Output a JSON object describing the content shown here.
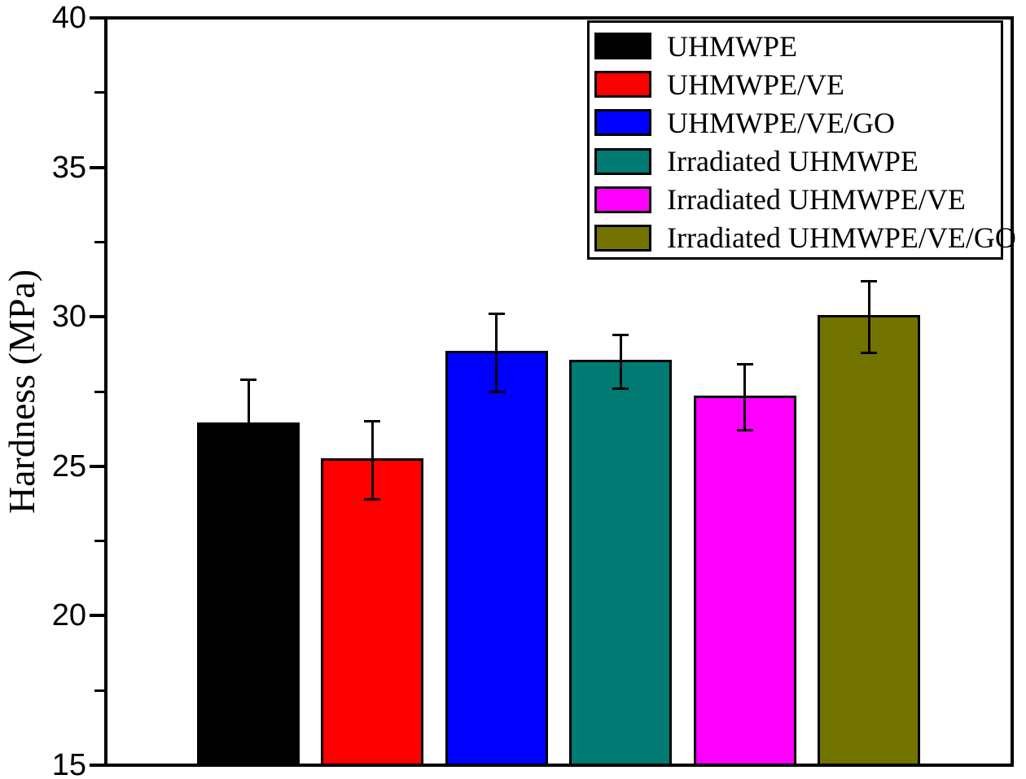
{
  "chart_data": {
    "type": "bar",
    "title": "",
    "xlabel": "",
    "ylabel": "Hardness (MPa)",
    "ylim": [
      15,
      40
    ],
    "yticks": [
      15,
      20,
      25,
      30,
      35,
      40
    ],
    "minor_tick_step": 2.5,
    "grid": false,
    "legend_position": "top-right",
    "background_color": "#ffffff",
    "axis_color": "#000000",
    "series": [
      {
        "label": "UHMWPE",
        "value": 26.4,
        "error": 1.5,
        "color": "#000000"
      },
      {
        "label": "UHMWPE/VE",
        "value": 25.2,
        "error": 1.3,
        "color": "#ff0000"
      },
      {
        "label": "UHMWPE/VE/GO",
        "value": 28.8,
        "error": 1.3,
        "color": "#0000ff"
      },
      {
        "label": "Irradiated UHMWPE",
        "value": 28.5,
        "error": 0.9,
        "color": "#007a72"
      },
      {
        "label": "Irradiated UHMWPE/VE",
        "value": 27.3,
        "error": 1.1,
        "color": "#ff00ff"
      },
      {
        "label": "Irradiated UHMWPE/VE/GO",
        "value": 30.0,
        "error": 1.2,
        "color": "#737300"
      }
    ]
  }
}
